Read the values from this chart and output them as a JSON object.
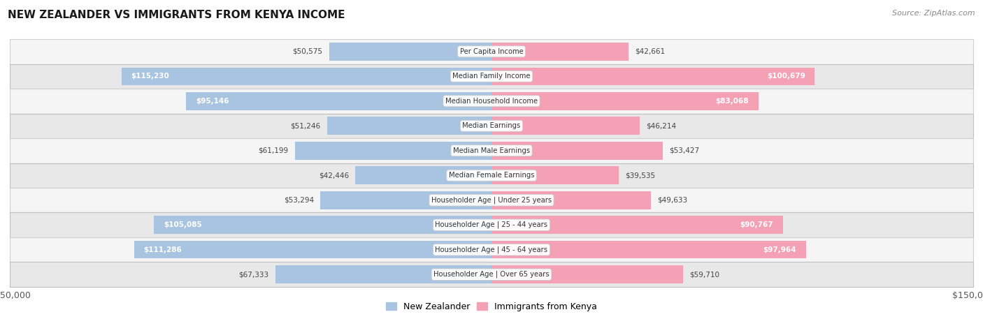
{
  "title": "NEW ZEALANDER VS IMMIGRANTS FROM KENYA INCOME",
  "source": "Source: ZipAtlas.com",
  "categories": [
    "Per Capita Income",
    "Median Family Income",
    "Median Household Income",
    "Median Earnings",
    "Median Male Earnings",
    "Median Female Earnings",
    "Householder Age | Under 25 years",
    "Householder Age | 25 - 44 years",
    "Householder Age | 45 - 64 years",
    "Householder Age | Over 65 years"
  ],
  "nz_values": [
    50575,
    115230,
    95146,
    51246,
    61199,
    42446,
    53294,
    105085,
    111286,
    67333
  ],
  "kenya_values": [
    42661,
    100679,
    83068,
    46214,
    53427,
    39535,
    49633,
    90767,
    97964,
    59710
  ],
  "nz_labels": [
    "$50,575",
    "$115,230",
    "$95,146",
    "$51,246",
    "$61,199",
    "$42,446",
    "$53,294",
    "$105,085",
    "$111,286",
    "$67,333"
  ],
  "kenya_labels": [
    "$42,661",
    "$100,679",
    "$83,068",
    "$46,214",
    "$53,427",
    "$39,535",
    "$49,633",
    "$90,767",
    "$97,964",
    "$59,710"
  ],
  "nz_color": "#a8c4e0",
  "nz_color_bright": "#6699cc",
  "kenya_color": "#f4a0b5",
  "kenya_color_bright": "#ee6688",
  "max_value": 150000,
  "bg_color": "#ffffff",
  "row_bg_dark": "#e8e8e8",
  "row_bg_light": "#f5f5f5",
  "bar_height": 0.72,
  "figsize": [
    14.06,
    4.67
  ],
  "dpi": 100,
  "inside_label_threshold": 70000,
  "legend_labels": [
    "New Zealander",
    "Immigrants from Kenya"
  ]
}
